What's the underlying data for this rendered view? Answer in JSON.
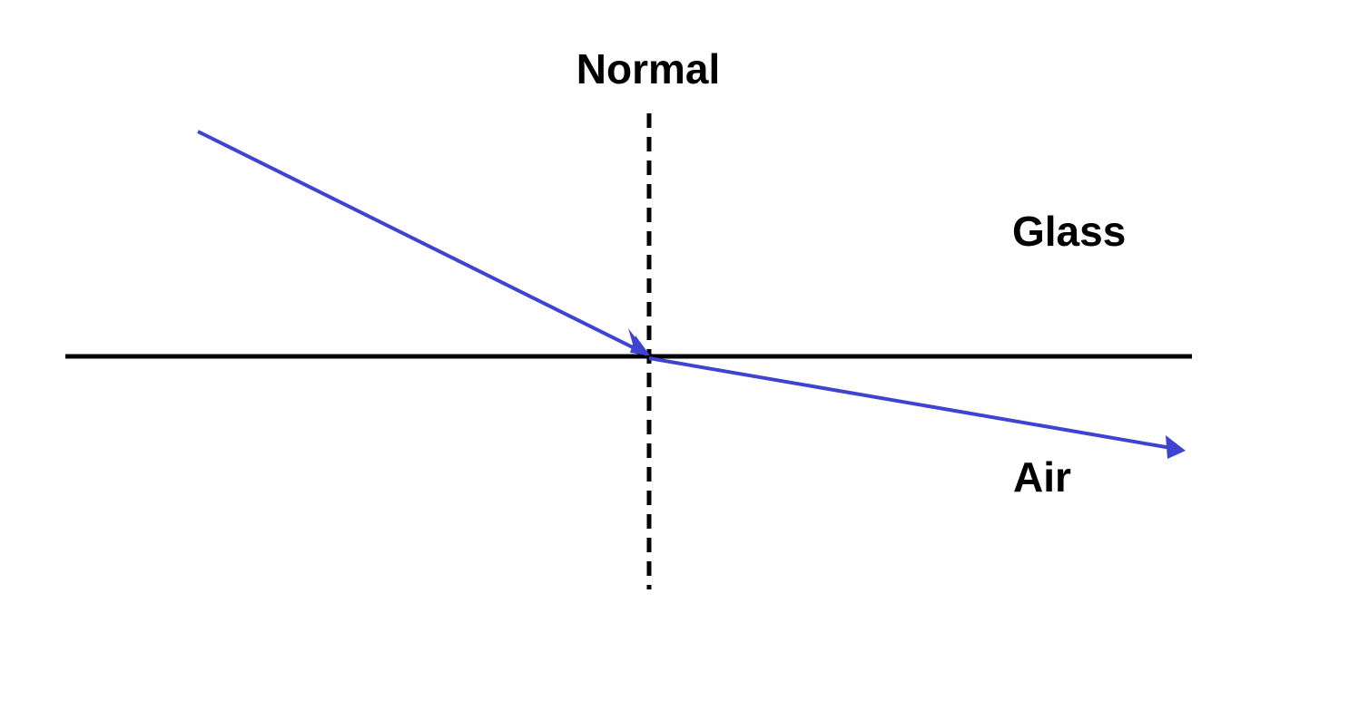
{
  "labels": {
    "normal": "Normal",
    "glass": "Glass",
    "air": "Air"
  },
  "colors": {
    "ray": "#3f43d1",
    "lines": "#000000",
    "background": "#ffffff"
  }
}
